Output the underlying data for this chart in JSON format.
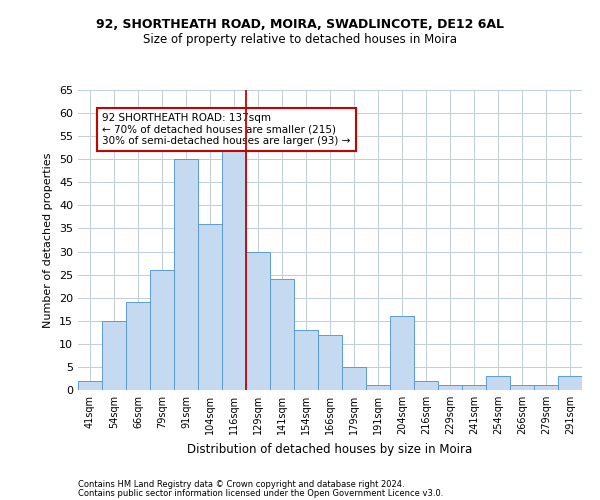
{
  "title1": "92, SHORTHEATH ROAD, MOIRA, SWADLINCOTE, DE12 6AL",
  "title2": "Size of property relative to detached houses in Moira",
  "xlabel": "Distribution of detached houses by size in Moira",
  "ylabel": "Number of detached properties",
  "categories": [
    "41sqm",
    "54sqm",
    "66sqm",
    "79sqm",
    "91sqm",
    "104sqm",
    "116sqm",
    "129sqm",
    "141sqm",
    "154sqm",
    "166sqm",
    "179sqm",
    "191sqm",
    "204sqm",
    "216sqm",
    "229sqm",
    "241sqm",
    "254sqm",
    "266sqm",
    "279sqm",
    "291sqm"
  ],
  "values": [
    2,
    15,
    19,
    26,
    50,
    36,
    53,
    30,
    24,
    13,
    12,
    5,
    1,
    16,
    2,
    1,
    1,
    3,
    1,
    1,
    3
  ],
  "bar_color": "#c5d9f0",
  "bar_edge_color": "#5b9bd5",
  "highlight_line_color": "#cc0000",
  "annotation_text": "92 SHORTHEATH ROAD: 137sqm\n← 70% of detached houses are smaller (215)\n30% of semi-detached houses are larger (93) →",
  "annotation_box_color": "#ffffff",
  "annotation_box_edge": "#cc0000",
  "footer1": "Contains HM Land Registry data © Crown copyright and database right 2024.",
  "footer2": "Contains public sector information licensed under the Open Government Licence v3.0.",
  "ylim": [
    0,
    65
  ],
  "yticks": [
    0,
    5,
    10,
    15,
    20,
    25,
    30,
    35,
    40,
    45,
    50,
    55,
    60,
    65
  ],
  "bg_color": "#ffffff",
  "grid_color": "#c0cce0",
  "highlight_bar_idx": 7
}
